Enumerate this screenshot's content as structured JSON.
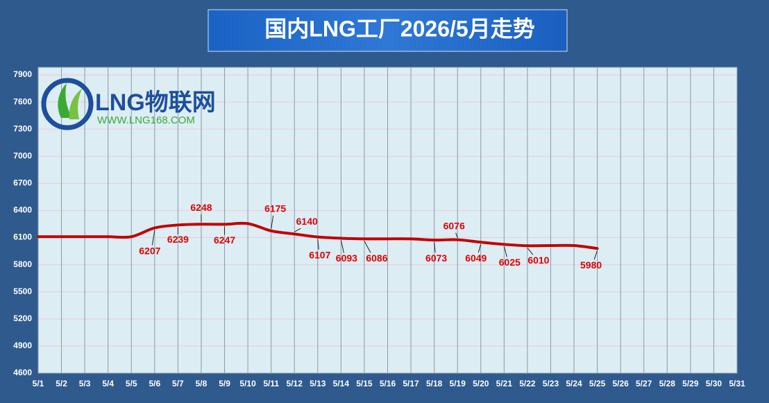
{
  "chart_data": {
    "type": "line",
    "title": "国内LNG工厂2026/5月走势",
    "logo_text": "LNG物联网",
    "logo_url": "WWW.LNG168.COM",
    "categories": [
      "5/1",
      "5/2",
      "5/3",
      "5/4",
      "5/5",
      "5/6",
      "5/7",
      "5/8",
      "5/9",
      "5/10",
      "5/11",
      "5/12",
      "5/13",
      "5/14",
      "5/15",
      "5/16",
      "5/17",
      "5/18",
      "5/19",
      "5/20",
      "5/21",
      "5/22",
      "5/23",
      "5/24",
      "5/25",
      "5/26",
      "5/27",
      "5/28",
      "5/29",
      "5/30",
      "5/31"
    ],
    "series": [
      {
        "name": "LNG",
        "color": "#c00000",
        "values": [
          6110,
          6110,
          6110,
          6110,
          6110,
          6207,
          6239,
          6248,
          6247,
          6255,
          6175,
          6140,
          6107,
          6093,
          6086,
          6086,
          6086,
          6073,
          6076,
          6049,
          6025,
          6010,
          6012,
          6012,
          5980,
          null,
          null,
          null,
          null,
          null,
          null
        ],
        "value_labels": [
          null,
          null,
          null,
          null,
          null,
          "6207",
          "6239",
          "6248",
          "6247",
          null,
          "6175",
          "6140",
          "6107",
          "6093",
          "6086",
          null,
          null,
          "6073",
          "6076",
          "6049",
          "6025",
          "6010",
          null,
          null,
          "5980",
          null,
          null,
          null,
          null,
          null,
          null
        ]
      }
    ],
    "ylim": [
      4600,
      7900
    ],
    "yticks": [
      4600,
      4900,
      5200,
      5500,
      5800,
      6100,
      6400,
      6700,
      7000,
      7300,
      7600,
      7900
    ],
    "grid": true
  }
}
